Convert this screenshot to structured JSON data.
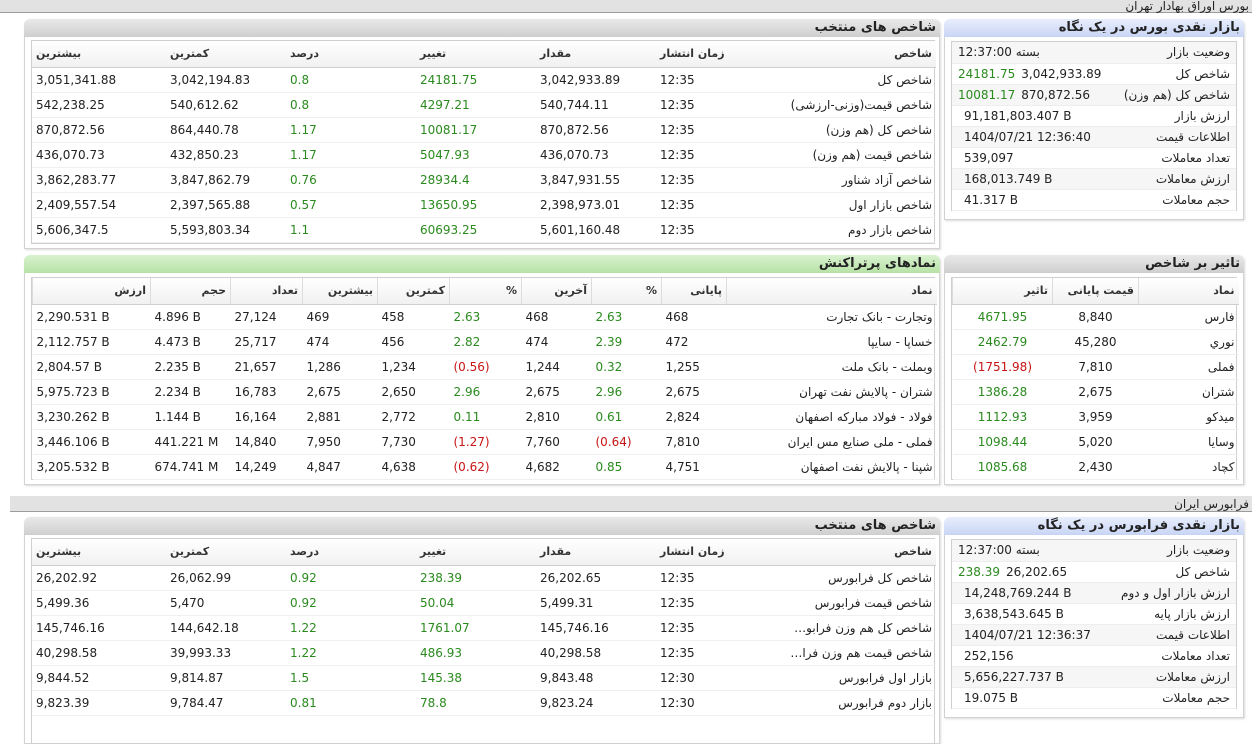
{
  "section_bourse": {
    "title": "بورس اوراق بهادار تهران"
  },
  "section_farabourse": {
    "title": "فرابورس ایران"
  },
  "bourse_glance": {
    "title": "بازار نقدی بورس در یک نگاه",
    "rows": [
      {
        "label": "وضعیت بازار",
        "value": "بسته 12:37:00",
        "change": ""
      },
      {
        "label": "شاخص کل",
        "value": "3,042,933.89",
        "change": "24181.75"
      },
      {
        "label": "شاخص کل (هم وزن)",
        "value": "870,872.56",
        "change": "10081.17"
      },
      {
        "label": "ارزش بازار",
        "value": "91,181,803.407 B",
        "change": ""
      },
      {
        "label": "اطلاعات قیمت",
        "value": "1404/07/21 12:36:40",
        "change": ""
      },
      {
        "label": "تعداد معاملات",
        "value": "539,097",
        "change": ""
      },
      {
        "label": "ارزش معاملات",
        "value": "168,013.749 B",
        "change": ""
      },
      {
        "label": "حجم معاملات",
        "value": "41.317 B",
        "change": ""
      }
    ]
  },
  "bourse_indices": {
    "title": "شاخص های منتخب",
    "headers": [
      "شاخص",
      "زمان انتشار",
      "مقدار",
      "تغییر",
      "درصد",
      "کمترین",
      "بیشترین"
    ],
    "rows": [
      [
        "شاخص کل",
        "12:35",
        "3,042,933.89",
        "24181.75",
        "0.8",
        "3,042,194.83",
        "3,051,341.88"
      ],
      [
        "شاخص قیمت(وزنی-ارزشی)",
        "12:35",
        "540,744.11",
        "4297.21",
        "0.8",
        "540,612.62",
        "542,238.25"
      ],
      [
        "شاخص کل (هم وزن)",
        "12:35",
        "870,872.56",
        "10081.17",
        "1.17",
        "864,440.78",
        "870,872.56"
      ],
      [
        "شاخص قیمت (هم وزن)",
        "12:35",
        "436,070.73",
        "5047.93",
        "1.17",
        "432,850.23",
        "436,070.73"
      ],
      [
        "شاخص آزاد شناور",
        "12:35",
        "3,847,931.55",
        "28934.4",
        "0.76",
        "3,847,862.79",
        "3,862,283.77"
      ],
      [
        "شاخص بازار اول",
        "12:35",
        "2,398,973.01",
        "13650.95",
        "0.57",
        "2,397,565.88",
        "2,409,557.54"
      ],
      [
        "شاخص بازار دوم",
        "12:35",
        "5,601,160.48",
        "60693.25",
        "1.1",
        "5,593,803.34",
        "5,606,347.5"
      ]
    ]
  },
  "impact": {
    "title": "تاثیر بر شاخص",
    "headers": [
      "نماد",
      "قیمت پایانی",
      "تاثیر"
    ],
    "rows": [
      {
        "symbol": "فارس",
        "price": "8,840",
        "impact": "4671.95",
        "neg": false
      },
      {
        "symbol": "نوري",
        "price": "45,280",
        "impact": "2462.79",
        "neg": false
      },
      {
        "symbol": "فملی",
        "price": "7,810",
        "impact": "(1751.98)",
        "neg": true
      },
      {
        "symbol": "شتران",
        "price": "2,675",
        "impact": "1386.28",
        "neg": false
      },
      {
        "symbol": "میدکو",
        "price": "3,959",
        "impact": "1112.93",
        "neg": false
      },
      {
        "symbol": "وسایا",
        "price": "5,020",
        "impact": "1098.44",
        "neg": false
      },
      {
        "symbol": "کچاد",
        "price": "2,430",
        "impact": "1085.68",
        "neg": false
      }
    ]
  },
  "active_symbols": {
    "title": "نمادهای پرتراکنش",
    "headers": [
      "نماد",
      "پایانی",
      "%",
      "آخرین",
      "%",
      "کمترین",
      "بیشترین",
      "تعداد",
      "حجم",
      "ارزش"
    ],
    "rows": [
      {
        "cells": [
          "وتجارت - بانک تجارت",
          "468",
          "2.63",
          "468",
          "2.63",
          "458",
          "469",
          "27,124",
          "4.896 B",
          "2,290.531 B"
        ],
        "neg1": false,
        "neg2": false
      },
      {
        "cells": [
          "خساپا - سایپا",
          "472",
          "2.39",
          "474",
          "2.82",
          "456",
          "474",
          "25,717",
          "4.473 B",
          "2,112.757 B"
        ],
        "neg1": false,
        "neg2": false
      },
      {
        "cells": [
          "وبملت - بانک ملت",
          "1,255",
          "0.32",
          "1,244",
          "(0.56)",
          "1,234",
          "1,286",
          "21,657",
          "2.235 B",
          "2,804.57 B"
        ],
        "neg1": false,
        "neg2": true
      },
      {
        "cells": [
          "شتران - پالایش نفت تهران",
          "2,675",
          "2.96",
          "2,675",
          "2.96",
          "2,650",
          "2,675",
          "16,783",
          "2.234 B",
          "5,975.723 B"
        ],
        "neg1": false,
        "neg2": false
      },
      {
        "cells": [
          "فولاد - فولاد مبارکه اصفهان",
          "2,824",
          "0.61",
          "2,810",
          "0.11",
          "2,772",
          "2,881",
          "16,164",
          "1.144 B",
          "3,230.262 B"
        ],
        "neg1": false,
        "neg2": false
      },
      {
        "cells": [
          "فملی - ملی صنایع مس ایران",
          "7,810",
          "(0.64)",
          "7,760",
          "(1.27)",
          "7,730",
          "7,950",
          "14,840",
          "441.221 M",
          "3,446.106 B"
        ],
        "neg1": true,
        "neg2": true
      },
      {
        "cells": [
          "شپنا - پالایش نفت اصفهان",
          "4,751",
          "0.85",
          "4,682",
          "(0.62)",
          "4,638",
          "4,847",
          "14,249",
          "674.741 M",
          "3,205.532 B"
        ],
        "neg1": false,
        "neg2": true
      }
    ]
  },
  "fara_glance": {
    "title": "بازار نقدی فرابورس در یک نگاه",
    "rows": [
      {
        "label": "وضعیت بازار",
        "value": "بسته 12:37:00",
        "change": ""
      },
      {
        "label": "شاخص کل",
        "value": "26,202.65",
        "change": "238.39"
      },
      {
        "label": "ارزش بازار اول و دوم",
        "value": "14,248,769.244 B",
        "change": ""
      },
      {
        "label": "ارزش بازار پایه",
        "value": "3,638,543.645 B",
        "change": ""
      },
      {
        "label": "اطلاعات قیمت",
        "value": "1404/07/21 12:36:37",
        "change": ""
      },
      {
        "label": "تعداد معاملات",
        "value": "252,156",
        "change": ""
      },
      {
        "label": "ارزش معاملات",
        "value": "5,656,227.737 B",
        "change": ""
      },
      {
        "label": "حجم معاملات",
        "value": "19.075 B",
        "change": ""
      }
    ]
  },
  "fara_indices": {
    "title": "شاخص های منتخب",
    "headers": [
      "شاخص",
      "زمان انتشار",
      "مقدار",
      "تغییر",
      "درصد",
      "کمترین",
      "بیشترین"
    ],
    "rows": [
      [
        "شاخص کل فرابورس",
        "12:35",
        "26,202.65",
        "238.39",
        "0.92",
        "26,062.99",
        "26,202.92"
      ],
      [
        "شاخص قیمت فرابورس",
        "12:35",
        "5,499.31",
        "50.04",
        "0.92",
        "5,470",
        "5,499.36"
      ],
      [
        "شاخص کل هم وزن فرابورس",
        "12:35",
        "145,746.16",
        "1761.07",
        "1.22",
        "144,642.18",
        "145,746.16"
      ],
      [
        "شاخص قیمت هم وزن فرابو...",
        "12:35",
        "40,298.58",
        "486.93",
        "1.22",
        "39,993.33",
        "40,298.58"
      ],
      [
        "بازار اول فرابورس",
        "12:30",
        "9,843.48",
        "145.38",
        "1.5",
        "9,814.87",
        "9,844.52"
      ],
      [
        "بازار دوم فرابورس",
        "12:30",
        "9,823.24",
        "78.8",
        "0.81",
        "9,784.47",
        "9,823.39"
      ]
    ]
  },
  "colors": {
    "positive": "#2a8a1e",
    "negative": "#c81414"
  }
}
